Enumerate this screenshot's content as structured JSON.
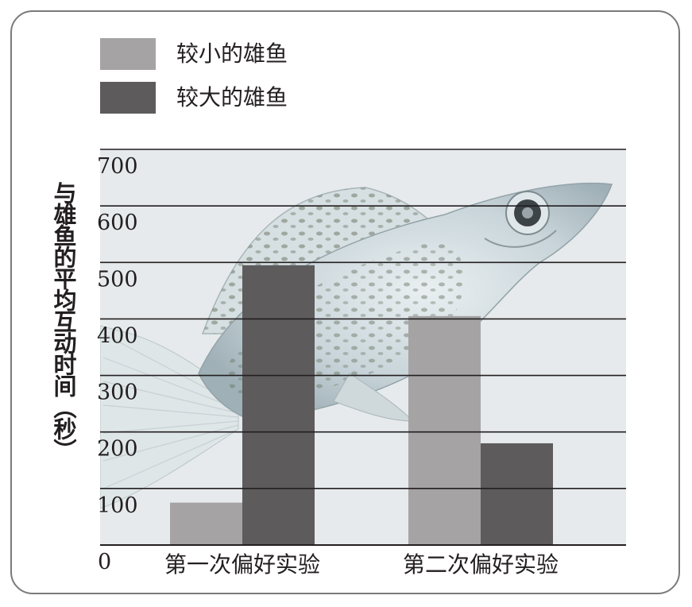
{
  "chart_data": {
    "type": "bar",
    "categories": [
      "第一次偏好实验",
      "第二次偏好实验"
    ],
    "series": [
      {
        "name": "较小的雄鱼",
        "values": [
          75,
          405
        ],
        "color": "#a5a3a4"
      },
      {
        "name": "较大的雄鱼",
        "values": [
          495,
          180
        ],
        "color": "#5d5b5c"
      }
    ],
    "ylabel": "与雄鱼的平均互动时间（秒）",
    "yticks": [
      0,
      100,
      200,
      300,
      400,
      500,
      600,
      700
    ],
    "ylim": [
      0,
      700
    ],
    "grid": true,
    "legend": "top-left",
    "background": "fish photo (molly)"
  }
}
